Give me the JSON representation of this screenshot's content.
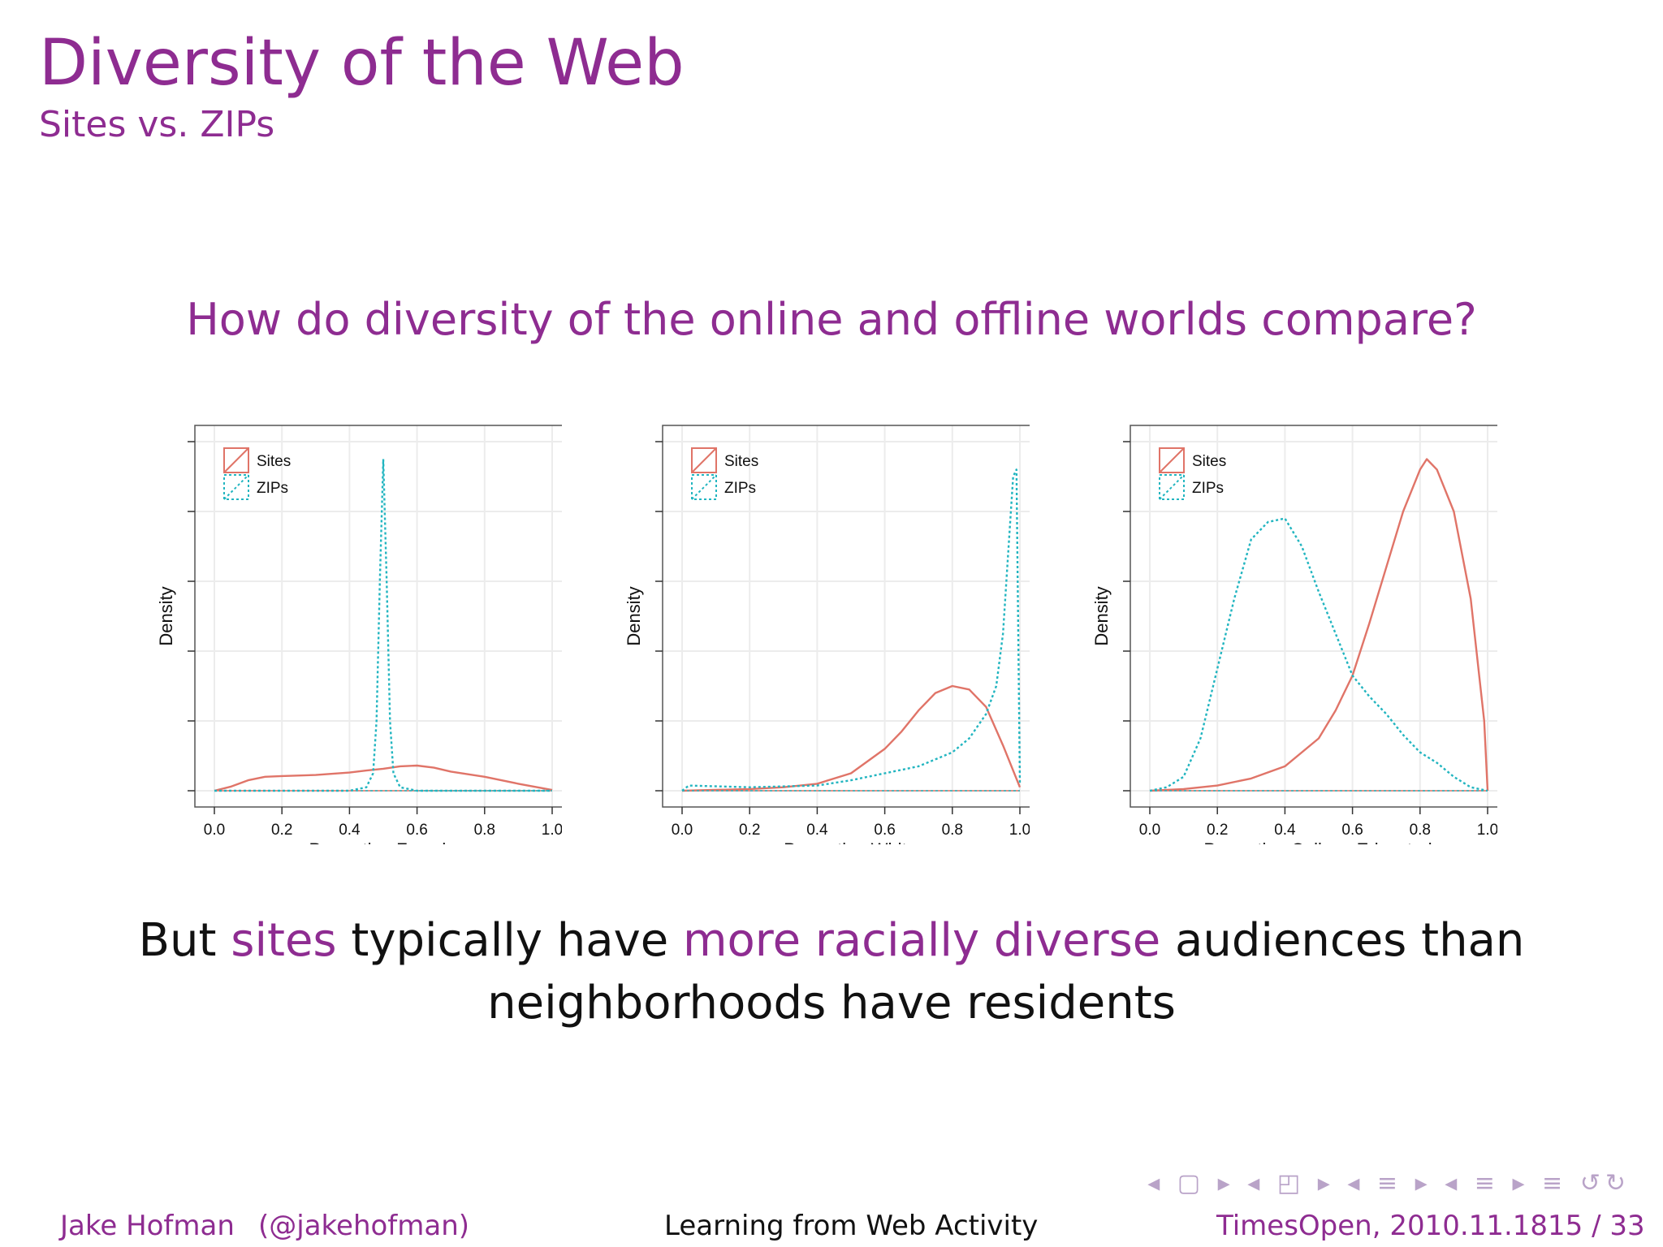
{
  "slide": {
    "title": "Diversity of the Web",
    "subtitle": "Sites vs. ZIPs",
    "question": "How do diversity of the online and offline worlds compare?",
    "conclusion": {
      "line1_a": "But ",
      "line1_b": "sites",
      "line1_c": " typically have ",
      "line1_d": "more racially diverse",
      "line1_e": " audiences than",
      "line2": "neighborhoods have residents"
    }
  },
  "footer": {
    "author": "Jake Hofman",
    "handle": "(@jakehofman)",
    "talk": "Learning from Web Activity",
    "event": "TimesOpen, 2010.11.18",
    "page": "15 / 33"
  },
  "nav_symbols": "◂ ▢ ▸ ◂ ◰ ▸ ◂ ≡ ▸ ◂ ≡ ▸ ≡ ↺↻",
  "colors": {
    "accent": "#8e2c91",
    "sites": "#e07468",
    "zips": "#22b5c0"
  },
  "chart_data": [
    {
      "type": "line",
      "xlabel": "Proportion Female",
      "ylabel": "Density",
      "xlim": [
        0,
        1
      ],
      "ylim": [
        0,
        1
      ],
      "xticks": [
        "0.0",
        "0.2",
        "0.4",
        "0.6",
        "0.8",
        "1.0"
      ],
      "legend": "top-left",
      "grid": true,
      "series": [
        {
          "name": "Sites",
          "x": [
            0,
            0.05,
            0.1,
            0.15,
            0.2,
            0.3,
            0.4,
            0.45,
            0.5,
            0.55,
            0.6,
            0.65,
            0.7,
            0.8,
            0.9,
            1.0
          ],
          "y": [
            0,
            0.012,
            0.03,
            0.04,
            0.042,
            0.045,
            0.052,
            0.058,
            0.063,
            0.07,
            0.072,
            0.066,
            0.055,
            0.04,
            0.02,
            0.002
          ]
        },
        {
          "name": "ZIPs",
          "x": [
            0,
            0.4,
            0.45,
            0.47,
            0.48,
            0.49,
            0.5,
            0.51,
            0.52,
            0.53,
            0.55,
            0.6,
            1.0
          ],
          "y": [
            0,
            0,
            0.01,
            0.05,
            0.2,
            0.6,
            0.95,
            0.6,
            0.2,
            0.05,
            0.01,
            0,
            0
          ]
        }
      ]
    },
    {
      "type": "line",
      "xlabel": "Proportion White",
      "ylabel": "Density",
      "xlim": [
        0,
        1
      ],
      "ylim": [
        0,
        1
      ],
      "xticks": [
        "0.0",
        "0.2",
        "0.4",
        "0.6",
        "0.8",
        "1.0"
      ],
      "legend": "top-left",
      "grid": true,
      "series": [
        {
          "name": "Sites",
          "x": [
            0,
            0.2,
            0.3,
            0.4,
            0.5,
            0.6,
            0.65,
            0.7,
            0.75,
            0.8,
            0.85,
            0.9,
            0.95,
            1.0
          ],
          "y": [
            0,
            0.005,
            0.01,
            0.02,
            0.05,
            0.12,
            0.17,
            0.23,
            0.28,
            0.3,
            0.29,
            0.24,
            0.13,
            0.01
          ]
        },
        {
          "name": "ZIPs",
          "x": [
            0,
            0.02,
            0.2,
            0.4,
            0.5,
            0.6,
            0.7,
            0.8,
            0.85,
            0.9,
            0.93,
            0.95,
            0.97,
            0.98,
            0.99,
            1.0
          ],
          "y": [
            0,
            0.015,
            0.01,
            0.015,
            0.03,
            0.05,
            0.07,
            0.11,
            0.15,
            0.22,
            0.3,
            0.45,
            0.75,
            0.9,
            0.92,
            0.02
          ]
        }
      ]
    },
    {
      "type": "line",
      "xlabel": "Proportion College Educated",
      "ylabel": "Density",
      "xlim": [
        0,
        1
      ],
      "ylim": [
        0,
        1
      ],
      "xticks": [
        "0.0",
        "0.2",
        "0.4",
        "0.6",
        "0.8",
        "1.0"
      ],
      "legend": "top-left",
      "grid": true,
      "series": [
        {
          "name": "Sites",
          "x": [
            0,
            0.1,
            0.2,
            0.3,
            0.4,
            0.5,
            0.55,
            0.6,
            0.65,
            0.7,
            0.75,
            0.8,
            0.82,
            0.85,
            0.9,
            0.95,
            0.99,
            1.0
          ],
          "y": [
            0,
            0.005,
            0.015,
            0.035,
            0.07,
            0.15,
            0.23,
            0.33,
            0.48,
            0.64,
            0.8,
            0.92,
            0.95,
            0.92,
            0.8,
            0.55,
            0.2,
            0
          ]
        },
        {
          "name": "ZIPs",
          "x": [
            0,
            0.05,
            0.1,
            0.15,
            0.2,
            0.25,
            0.3,
            0.35,
            0.4,
            0.45,
            0.5,
            0.55,
            0.6,
            0.65,
            0.7,
            0.75,
            0.8,
            0.85,
            0.9,
            0.95,
            1.0
          ],
          "y": [
            0,
            0.01,
            0.04,
            0.15,
            0.35,
            0.55,
            0.72,
            0.77,
            0.78,
            0.7,
            0.57,
            0.45,
            0.33,
            0.27,
            0.22,
            0.16,
            0.11,
            0.08,
            0.04,
            0.01,
            0
          ]
        }
      ]
    }
  ]
}
